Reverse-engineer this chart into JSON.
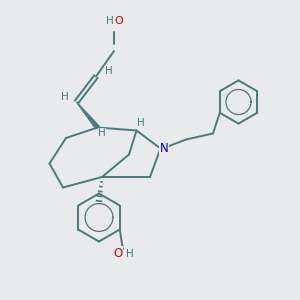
{
  "bg_color": "#e8eaeb",
  "bond_color": "#4a7a7a",
  "atom_colors": {
    "O": "#dd0000",
    "N": "#0000cc",
    "H": "#4a7a7a",
    "C": "#4a7a7a"
  }
}
